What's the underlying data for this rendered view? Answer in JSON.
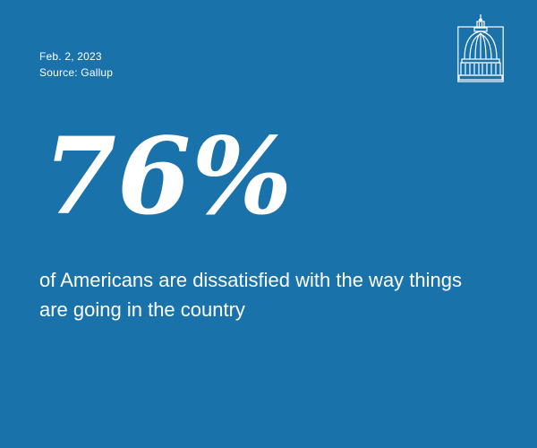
{
  "date": "Feb. 2, 2023",
  "source": "Source: Gallup",
  "stat": "76%",
  "description": "of Americans are dissatisfied with the way things are going in the country",
  "colors": {
    "background": "#1a72aa",
    "text": "#ffffff"
  },
  "logo": {
    "icon": "capitol-dome-icon"
  }
}
